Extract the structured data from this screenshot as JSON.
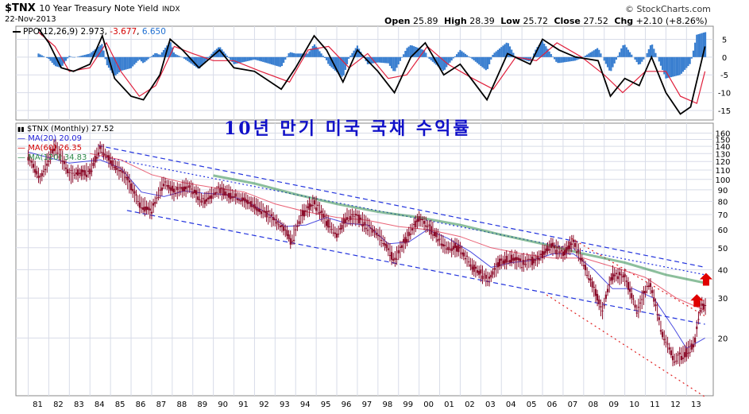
{
  "header": {
    "ticker": "$TNX",
    "name": "10 Year Treasury Note Yield",
    "exchange": "INDX",
    "date": "22-Nov-2013",
    "brand": "© StockCharts.com",
    "open_label": "Open",
    "open": "25.89",
    "high_label": "High",
    "high": "28.39",
    "low_label": "Low",
    "low": "25.72",
    "close_label": "Close",
    "close": "27.52",
    "chg_label": "Chg",
    "chg": "+2.10 (+8.26%)"
  },
  "title_kr": "10년 만기 미국 국채 수익률",
  "ppo_legend": {
    "label": "PPO(12,26,9)",
    "ppo": "2.973",
    "signal": "-3.677",
    "hist": "6.650"
  },
  "main_legend": {
    "price": "$TNX (Monthly) 27.52",
    "ma20": "MA(20) 20.09",
    "ma60": "MA(60) 26.35",
    "ma120": "MA(120) 34.83"
  },
  "colors": {
    "candle": "#8a0a28",
    "ma20": "#1f1fd8",
    "ma60": "#e0203c",
    "ma120": "#2e8a4a",
    "channel": "#2233dd",
    "red_channel": "#e02020",
    "grid": "#d8dce8",
    "histogram": "#3a7fd0",
    "arrow": "#e00000"
  },
  "chart_data": [
    {
      "type": "line",
      "name_hint": "PPO panel",
      "x_ticks": [
        "81",
        "82",
        "83",
        "84",
        "85",
        "86",
        "87",
        "88",
        "89",
        "90",
        "91",
        "92",
        "93",
        "94",
        "95",
        "96",
        "97",
        "98",
        "99",
        "00",
        "01",
        "02",
        "03",
        "04",
        "05",
        "06",
        "07",
        "08",
        "09",
        "10",
        "11",
        "12",
        "13"
      ],
      "ylim": [
        -17,
        8
      ],
      "y_ticks": [
        5,
        0,
        -5,
        -10,
        -15
      ],
      "ppo_points": [
        [
          1981.5,
          8
        ],
        [
          1982.0,
          4
        ],
        [
          1982.6,
          -3
        ],
        [
          1983.2,
          -4
        ],
        [
          1984.0,
          -2
        ],
        [
          1984.6,
          6
        ],
        [
          1985.2,
          -6
        ],
        [
          1986.0,
          -11
        ],
        [
          1986.6,
          -12
        ],
        [
          1987.4,
          -5
        ],
        [
          1987.9,
          5
        ],
        [
          1988.5,
          2
        ],
        [
          1989.3,
          -3
        ],
        [
          1990.3,
          2
        ],
        [
          1991.0,
          -3
        ],
        [
          1992.0,
          -4
        ],
        [
          1993.3,
          -9
        ],
        [
          1994.0,
          -3
        ],
        [
          1994.9,
          6
        ],
        [
          1995.5,
          2
        ],
        [
          1996.3,
          -7
        ],
        [
          1997.0,
          2
        ],
        [
          1998.0,
          -4
        ],
        [
          1998.8,
          -10
        ],
        [
          1999.6,
          0
        ],
        [
          2000.3,
          4
        ],
        [
          2001.2,
          -5
        ],
        [
          2002.0,
          -2
        ],
        [
          2003.3,
          -12
        ],
        [
          2004.3,
          1
        ],
        [
          2005.4,
          -2
        ],
        [
          2006.0,
          5
        ],
        [
          2006.8,
          2
        ],
        [
          2007.6,
          0
        ],
        [
          2008.7,
          -1
        ],
        [
          2009.3,
          -11
        ],
        [
          2010.0,
          -6
        ],
        [
          2010.7,
          -8
        ],
        [
          2011.3,
          0
        ],
        [
          2012.0,
          -10
        ],
        [
          2012.7,
          -16
        ],
        [
          2013.2,
          -14
        ],
        [
          2013.9,
          3
        ]
      ],
      "signal_points": [
        [
          1981.5,
          7
        ],
        [
          1982.3,
          3
        ],
        [
          1983.0,
          -4
        ],
        [
          1984.0,
          -3
        ],
        [
          1984.8,
          4
        ],
        [
          1985.5,
          -4
        ],
        [
          1986.4,
          -11
        ],
        [
          1987.2,
          -8
        ],
        [
          1988.1,
          3
        ],
        [
          1989.0,
          1
        ],
        [
          1990.0,
          -1
        ],
        [
          1991.0,
          -1
        ],
        [
          1992.3,
          -4
        ],
        [
          1993.7,
          -7
        ],
        [
          1994.6,
          2
        ],
        [
          1995.6,
          3
        ],
        [
          1996.6,
          -3
        ],
        [
          1997.5,
          1
        ],
        [
          1998.5,
          -6
        ],
        [
          1999.4,
          -5
        ],
        [
          2000.4,
          3
        ],
        [
          2001.4,
          -2
        ],
        [
          2002.6,
          -6
        ],
        [
          2003.6,
          -9
        ],
        [
          2004.7,
          0
        ],
        [
          2005.7,
          -1
        ],
        [
          2006.7,
          4
        ],
        [
          2007.9,
          0
        ],
        [
          2009.0,
          -5
        ],
        [
          2009.9,
          -10
        ],
        [
          2011.0,
          -4
        ],
        [
          2012.0,
          -4
        ],
        [
          2012.7,
          -11
        ],
        [
          2013.5,
          -13
        ],
        [
          2013.9,
          -4
        ]
      ]
    },
    {
      "type": "line",
      "name_hint": "Monthly price panel",
      "x_ticks": [
        "81",
        "82",
        "83",
        "84",
        "85",
        "86",
        "87",
        "88",
        "89",
        "90",
        "91",
        "92",
        "93",
        "94",
        "95",
        "96",
        "97",
        "98",
        "99",
        "00",
        "01",
        "02",
        "03",
        "04",
        "05",
        "06",
        "07",
        "08",
        "09",
        "10",
        "11",
        "12",
        "13"
      ],
      "y_ticks": [
        160,
        150,
        140,
        130,
        120,
        110,
        100,
        90,
        80,
        70,
        60,
        50,
        40,
        30,
        20
      ],
      "log_scale": true,
      "price_points": [
        [
          1981.0,
          125
        ],
        [
          1981.6,
          100
        ],
        [
          1982.3,
          140
        ],
        [
          1983.0,
          105
        ],
        [
          1984.0,
          108
        ],
        [
          1984.5,
          138
        ],
        [
          1985.0,
          120
        ],
        [
          1985.8,
          100
        ],
        [
          1986.4,
          78
        ],
        [
          1987.0,
          73
        ],
        [
          1987.6,
          97
        ],
        [
          1988.1,
          88
        ],
        [
          1988.8,
          93
        ],
        [
          1989.5,
          80
        ],
        [
          1990.3,
          90
        ],
        [
          1990.9,
          85
        ],
        [
          1991.6,
          80
        ],
        [
          1992.3,
          74
        ],
        [
          1992.9,
          67
        ],
        [
          1993.6,
          58
        ],
        [
          1993.8,
          53
        ],
        [
          1994.3,
          70
        ],
        [
          1994.9,
          79
        ],
        [
          1995.5,
          65
        ],
        [
          1996.0,
          57
        ],
        [
          1996.5,
          68
        ],
        [
          1997.0,
          68
        ],
        [
          1997.5,
          62
        ],
        [
          1998.1,
          56
        ],
        [
          1998.8,
          44
        ],
        [
          1999.3,
          53
        ],
        [
          2000.0,
          67
        ],
        [
          2000.6,
          60
        ],
        [
          2001.3,
          50
        ],
        [
          2001.9,
          50
        ],
        [
          2002.6,
          41
        ],
        [
          2003.4,
          36
        ],
        [
          2003.9,
          43
        ],
        [
          2004.5,
          45
        ],
        [
          2005.0,
          43
        ],
        [
          2005.7,
          44
        ],
        [
          2006.4,
          51
        ],
        [
          2007.0,
          47
        ],
        [
          2007.5,
          53
        ],
        [
          2008.2,
          38
        ],
        [
          2008.9,
          26
        ],
        [
          2009.4,
          38
        ],
        [
          2010.0,
          37
        ],
        [
          2010.6,
          26
        ],
        [
          2011.2,
          35
        ],
        [
          2011.8,
          21
        ],
        [
          2012.4,
          16
        ],
        [
          2012.9,
          17
        ],
        [
          2013.4,
          19
        ],
        [
          2013.7,
          28
        ],
        [
          2013.9,
          27.5
        ]
      ],
      "ma20_points": [
        [
          1981.0,
          132
        ],
        [
          1983.0,
          118
        ],
        [
          1984.5,
          122
        ],
        [
          1985.5,
          112
        ],
        [
          1986.5,
          88
        ],
        [
          1987.6,
          84
        ],
        [
          1988.6,
          89
        ],
        [
          1989.5,
          87
        ],
        [
          1990.5,
          86
        ],
        [
          1991.5,
          81
        ],
        [
          1992.5,
          72
        ],
        [
          1993.5,
          62
        ],
        [
          1994.5,
          63
        ],
        [
          1995.5,
          68
        ],
        [
          1996.5,
          64
        ],
        [
          1997.5,
          63
        ],
        [
          1998.5,
          52
        ],
        [
          1999.5,
          53
        ],
        [
          2000.4,
          60
        ],
        [
          2001.4,
          55
        ],
        [
          2002.5,
          48
        ],
        [
          2003.5,
          41
        ],
        [
          2004.5,
          43
        ],
        [
          2005.5,
          44
        ],
        [
          2006.5,
          47
        ],
        [
          2007.5,
          47
        ],
        [
          2008.5,
          40
        ],
        [
          2009.4,
          33
        ],
        [
          2010.4,
          33
        ],
        [
          2011.4,
          30
        ],
        [
          2012.4,
          22
        ],
        [
          2013.0,
          18
        ],
        [
          2013.9,
          20
        ]
      ],
      "ma60_points": [
        [
          1984.0,
          130
        ],
        [
          1985.5,
          122
        ],
        [
          1987.0,
          105
        ],
        [
          1988.5,
          97
        ],
        [
          1990.0,
          92
        ],
        [
          1991.5,
          88
        ],
        [
          1993.0,
          78
        ],
        [
          1994.5,
          72
        ],
        [
          1996.0,
          68
        ],
        [
          1997.5,
          66
        ],
        [
          1999.0,
          62
        ],
        [
          2000.5,
          60
        ],
        [
          2002.0,
          56
        ],
        [
          2003.5,
          50
        ],
        [
          2005.0,
          47
        ],
        [
          2006.5,
          45
        ],
        [
          2008.0,
          45
        ],
        [
          2009.5,
          41
        ],
        [
          2011.0,
          37
        ],
        [
          2012.5,
          30
        ],
        [
          2013.9,
          26.5
        ]
      ],
      "ma120_points": [
        [
          1990.0,
          104
        ],
        [
          1992.0,
          96
        ],
        [
          1994.0,
          86
        ],
        [
          1996.0,
          78
        ],
        [
          1998.0,
          72
        ],
        [
          2000.0,
          68
        ],
        [
          2002.0,
          63
        ],
        [
          2004.0,
          57
        ],
        [
          2006.0,
          52
        ],
        [
          2008.0,
          47
        ],
        [
          2010.0,
          43
        ],
        [
          2012.0,
          38
        ],
        [
          2013.9,
          35
        ]
      ],
      "blue_channel_upper": [
        [
          1984.4,
          141
        ],
        [
          2013.9,
          41
        ]
      ],
      "blue_channel_lower": [
        [
          1985.8,
          73
        ],
        [
          2013.9,
          23
        ]
      ],
      "blue_dotted": [
        [
          1984.4,
          127
        ],
        [
          2013.9,
          38
        ]
      ],
      "red_channel_upper": [
        [
          2007.4,
          55
        ],
        [
          2013.9,
          25
        ]
      ],
      "red_channel_lower": [
        [
          2006.2,
          31
        ],
        [
          2013.9,
          11
        ]
      ],
      "arrows": [
        [
          2013.95,
          36
        ],
        [
          2013.5,
          29
        ]
      ]
    }
  ]
}
